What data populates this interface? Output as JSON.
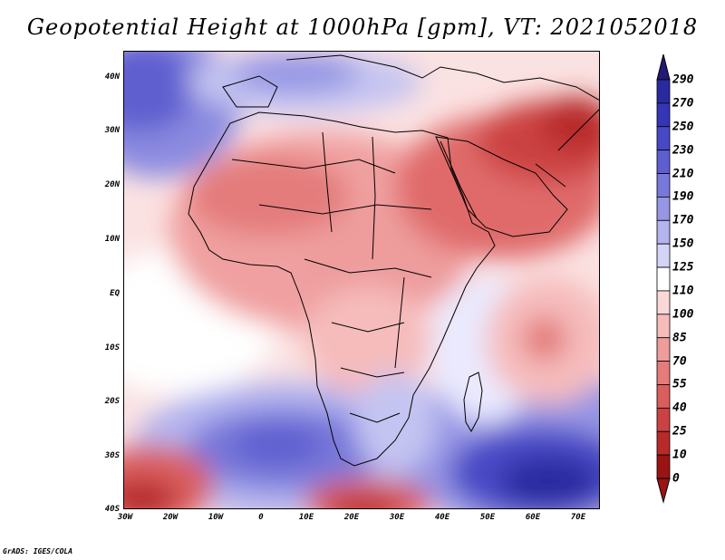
{
  "title": "Geopotential Height at 1000hPa [gpm], VT: 2021052018",
  "credit": "GrADS: IGES/COLA",
  "map": {
    "lat_ticks": [
      "40N",
      "30N",
      "20N",
      "10N",
      "EQ",
      "10S",
      "20S",
      "30S",
      "40S"
    ],
    "lon_ticks": [
      "30W",
      "20W",
      "10W",
      "0",
      "10E",
      "20E",
      "30E",
      "40E",
      "50E",
      "60E",
      "70E"
    ],
    "extent_deg": {
      "lon_min": -30,
      "lon_max": 75,
      "lat_min": -40,
      "lat_max": 45
    }
  },
  "colorbar": {
    "levels": [
      "290",
      "270",
      "250",
      "230",
      "210",
      "190",
      "170",
      "150",
      "125",
      "110",
      "100",
      "85",
      "70",
      "55",
      "40",
      "25",
      "10",
      "0"
    ],
    "colors": [
      "#241878",
      "#2a2aa0",
      "#3535b8",
      "#4848c6",
      "#5e5ed0",
      "#7878da",
      "#9696e4",
      "#b4b4ee",
      "#d4d4f6",
      "#ffffff",
      "#fbd8d8",
      "#f6bcbc",
      "#ee9c9c",
      "#e47c7c",
      "#da5e5e",
      "#cc4242",
      "#b82a2a",
      "#9a1414"
    ]
  }
}
